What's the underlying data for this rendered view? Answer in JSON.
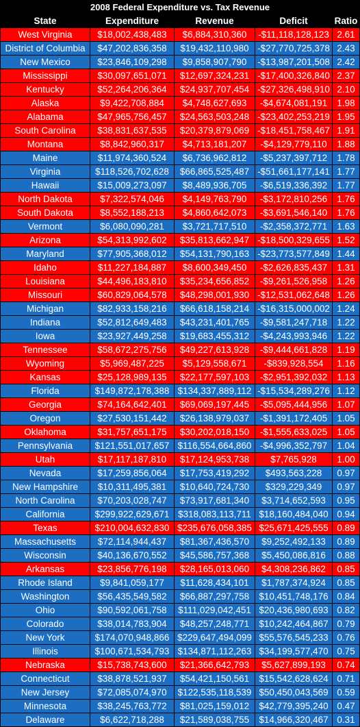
{
  "title": "2008 Federal Expenditure vs. Tax Revenue",
  "headers": [
    "State",
    "Expenditure",
    "Revenue",
    "Deficit",
    "Ratio"
  ],
  "colors": {
    "red_row": "#fe0000",
    "blue_row": "#1b6ec2",
    "header": "#000000"
  },
  "rows": [
    {
      "state": "West Virginia",
      "expenditure": "$18,002,438,483",
      "revenue": "$6,884,310,360",
      "deficit": "-$11,118,128,123",
      "ratio": "2.61",
      "color": "red"
    },
    {
      "state": "District of Columbia",
      "expenditure": "$47,202,836,358",
      "revenue": "$19,432,110,980",
      "deficit": "-$27,770,725,378",
      "ratio": "2.43",
      "color": "blue"
    },
    {
      "state": "New Mexico",
      "expenditure": "$23,846,109,298",
      "revenue": "$9,858,907,790",
      "deficit": "-$13,987,201,508",
      "ratio": "2.42",
      "color": "blue"
    },
    {
      "state": "Mississippi",
      "expenditure": "$30,097,651,071",
      "revenue": "$12,697,324,231",
      "deficit": "-$17,400,326,840",
      "ratio": "2.37",
      "color": "red"
    },
    {
      "state": "Kentucky",
      "expenditure": "$52,264,206,364",
      "revenue": "$24,937,707,454",
      "deficit": "-$27,326,498,910",
      "ratio": "2.10",
      "color": "red"
    },
    {
      "state": "Alaska",
      "expenditure": "$9,422,708,884",
      "revenue": "$4,748,627,693",
      "deficit": "-$4,674,081,191",
      "ratio": "1.98",
      "color": "red"
    },
    {
      "state": "Alabama",
      "expenditure": "$47,965,756,457",
      "revenue": "$24,563,503,248",
      "deficit": "-$23,402,253,219",
      "ratio": "1.95",
      "color": "red"
    },
    {
      "state": "South Carolina",
      "expenditure": "$38,831,637,535",
      "revenue": "$20,379,879,069",
      "deficit": "-$18,451,758,467",
      "ratio": "1.91",
      "color": "red"
    },
    {
      "state": "Montana",
      "expenditure": "$8,842,960,317",
      "revenue": "$4,713,181,207",
      "deficit": "-$4,129,779,110",
      "ratio": "1.88",
      "color": "red"
    },
    {
      "state": "Maine",
      "expenditure": "$11,974,360,524",
      "revenue": "$6,736,962,812",
      "deficit": "-$5,237,397,712",
      "ratio": "1.78",
      "color": "blue"
    },
    {
      "state": "Virginia",
      "expenditure": "$118,526,702,628",
      "revenue": "$66,865,525,487",
      "deficit": "-$51,661,177,141",
      "ratio": "1.77",
      "color": "blue"
    },
    {
      "state": "Hawaii",
      "expenditure": "$15,009,273,097",
      "revenue": "$8,489,936,705",
      "deficit": "-$6,519,336,392",
      "ratio": "1.77",
      "color": "blue"
    },
    {
      "state": "North Dakota",
      "expenditure": "$7,322,574,046",
      "revenue": "$4,149,763,790",
      "deficit": "-$3,172,810,256",
      "ratio": "1.76",
      "color": "red"
    },
    {
      "state": "South Dakota",
      "expenditure": "$8,552,188,213",
      "revenue": "$4,860,642,073",
      "deficit": "-$3,691,546,140",
      "ratio": "1.76",
      "color": "red"
    },
    {
      "state": "Vermont",
      "expenditure": "$6,080,090,281",
      "revenue": "$3,721,717,510",
      "deficit": "-$2,358,372,771",
      "ratio": "1.63",
      "color": "blue"
    },
    {
      "state": "Arizona",
      "expenditure": "$54,313,992,602",
      "revenue": "$35,813,662,947",
      "deficit": "-$18,500,329,655",
      "ratio": "1.52",
      "color": "red"
    },
    {
      "state": "Maryland",
      "expenditure": "$77,905,368,012",
      "revenue": "$54,131,790,163",
      "deficit": "-$23,773,577,849",
      "ratio": "1.44",
      "color": "blue"
    },
    {
      "state": "Idaho",
      "expenditure": "$11,227,184,887",
      "revenue": "$8,600,349,450",
      "deficit": "-$2,626,835,437",
      "ratio": "1.31",
      "color": "red"
    },
    {
      "state": "Louisiana",
      "expenditure": "$44,496,183,810",
      "revenue": "$35,234,656,852",
      "deficit": "-$9,261,526,958",
      "ratio": "1.26",
      "color": "red"
    },
    {
      "state": "Missouri",
      "expenditure": "$60,829,064,578",
      "revenue": "$48,298,001,930",
      "deficit": "-$12,531,062,648",
      "ratio": "1.26",
      "color": "red"
    },
    {
      "state": "Michigan",
      "expenditure": "$82,933,158,216",
      "revenue": "$66,618,158,214",
      "deficit": "-$16,315,000,002",
      "ratio": "1.24",
      "color": "blue"
    },
    {
      "state": "Indiana",
      "expenditure": "$52,812,649,483",
      "revenue": "$43,231,401,765",
      "deficit": "-$9,581,247,718",
      "ratio": "1.22",
      "color": "blue"
    },
    {
      "state": "Iowa",
      "expenditure": "$23,927,449,258",
      "revenue": "$19,683,455,312",
      "deficit": "-$4,243,993,946",
      "ratio": "1.22",
      "color": "blue"
    },
    {
      "state": "Tennessee",
      "expenditure": "$58,672,275,756",
      "revenue": "$49,227,613,928",
      "deficit": "-$9,444,661,828",
      "ratio": "1.19",
      "color": "red"
    },
    {
      "state": "Wyoming",
      "expenditure": "$5,969,487,225",
      "revenue": "$5,129,558,671",
      "deficit": "-$839,928,554",
      "ratio": "1.16",
      "color": "red"
    },
    {
      "state": "Kansas",
      "expenditure": "$25,128,989,135",
      "revenue": "$22,177,597,103",
      "deficit": "-$2,951,392,032",
      "ratio": "1.13",
      "color": "red"
    },
    {
      "state": "Florida",
      "expenditure": "$149,872,178,388",
      "revenue": "$134,337,889,112",
      "deficit": "-$15,534,289,276",
      "ratio": "1.12",
      "color": "blue"
    },
    {
      "state": "Georgia",
      "expenditure": "$74,164,642,401",
      "revenue": "$69,069,197,445",
      "deficit": "-$5,095,444,956",
      "ratio": "1.07",
      "color": "red"
    },
    {
      "state": "Oregon",
      "expenditure": "$27,530,151,442",
      "revenue": "$26,138,979,037",
      "deficit": "-$1,391,172,405",
      "ratio": "1.05",
      "color": "blue"
    },
    {
      "state": "Oklahoma",
      "expenditure": "$31,757,651,175",
      "revenue": "$30,202,018,150",
      "deficit": "-$1,555,633,025",
      "ratio": "1.05",
      "color": "red"
    },
    {
      "state": "Pennsylvania",
      "expenditure": "$121,551,017,657",
      "revenue": "$116,554,664,860",
      "deficit": "-$4,996,352,797",
      "ratio": "1.04",
      "color": "blue"
    },
    {
      "state": "Utah",
      "expenditure": "$17,117,187,810",
      "revenue": "$17,124,953,738",
      "deficit": "$7,765,928",
      "ratio": "1.00",
      "color": "red"
    },
    {
      "state": "Nevada",
      "expenditure": "$17,259,856,064",
      "revenue": "$17,753,419,292",
      "deficit": "$493,563,228",
      "ratio": "0.97",
      "color": "blue"
    },
    {
      "state": "New Hampshire",
      "expenditure": "$10,311,495,381",
      "revenue": "$10,640,724,730",
      "deficit": "$329,229,349",
      "ratio": "0.97",
      "color": "blue"
    },
    {
      "state": "North Carolina",
      "expenditure": "$70,203,028,747",
      "revenue": "$73,917,681,340",
      "deficit": "$3,714,652,593",
      "ratio": "0.95",
      "color": "blue"
    },
    {
      "state": "California",
      "expenditure": "$299,922,629,671",
      "revenue": "$318,083,113,711",
      "deficit": "$18,160,484,040",
      "ratio": "0.94",
      "color": "blue"
    },
    {
      "state": "Texas",
      "expenditure": "$210,004,632,830",
      "revenue": "$235,676,058,385",
      "deficit": "$25,671,425,555",
      "ratio": "0.89",
      "color": "red"
    },
    {
      "state": "Massachusetts",
      "expenditure": "$72,114,944,437",
      "revenue": "$81,367,436,570",
      "deficit": "$9,252,492,133",
      "ratio": "0.89",
      "color": "blue"
    },
    {
      "state": "Wisconsin",
      "expenditure": "$40,136,670,552",
      "revenue": "$45,586,757,368",
      "deficit": "$5,450,086,816",
      "ratio": "0.88",
      "color": "blue"
    },
    {
      "state": "Arkansas",
      "expenditure": "$23,856,776,198",
      "revenue": "$28,165,013,060",
      "deficit": "$4,308,236,862",
      "ratio": "0.85",
      "color": "red"
    },
    {
      "state": "Rhode Island",
      "expenditure": "$9,841,059,177",
      "revenue": "$11,628,434,101",
      "deficit": "$1,787,374,924",
      "ratio": "0.85",
      "color": "blue"
    },
    {
      "state": "Washington",
      "expenditure": "$56,435,549,582",
      "revenue": "$66,887,297,758",
      "deficit": "$10,451,748,176",
      "ratio": "0.84",
      "color": "blue"
    },
    {
      "state": "Ohio",
      "expenditure": "$90,592,061,758",
      "revenue": "$111,029,042,451",
      "deficit": "$20,436,980,693",
      "ratio": "0.82",
      "color": "blue"
    },
    {
      "state": "Colorado",
      "expenditure": "$38,014,783,904",
      "revenue": "$48,257,248,771",
      "deficit": "$10,242,464,867",
      "ratio": "0.79",
      "color": "blue"
    },
    {
      "state": "New York",
      "expenditure": "$174,070,948,866",
      "revenue": "$229,647,494,099",
      "deficit": "$55,576,545,233",
      "ratio": "0.76",
      "color": "blue"
    },
    {
      "state": "Illinois",
      "expenditure": "$100,671,534,793",
      "revenue": "$134,871,112,263",
      "deficit": "$34,199,577,470",
      "ratio": "0.75",
      "color": "blue"
    },
    {
      "state": "Nebraska",
      "expenditure": "$15,738,743,600",
      "revenue": "$21,366,642,793",
      "deficit": "$5,627,899,193",
      "ratio": "0.74",
      "color": "red"
    },
    {
      "state": "Connecticut",
      "expenditure": "$38,878,521,937",
      "revenue": "$54,421,150,561",
      "deficit": "$15,542,628,624",
      "ratio": "0.71",
      "color": "blue"
    },
    {
      "state": "New Jersey",
      "expenditure": "$72,085,074,970",
      "revenue": "$122,535,118,539",
      "deficit": "$50,450,043,569",
      "ratio": "0.59",
      "color": "blue"
    },
    {
      "state": "Minnesota",
      "expenditure": "$38,245,763,772",
      "revenue": "$81,025,159,012",
      "deficit": "$42,779,395,240",
      "ratio": "0.47",
      "color": "blue"
    },
    {
      "state": "Delaware",
      "expenditure": "$6,622,718,288",
      "revenue": "$21,589,038,755",
      "deficit": "$14,966,320,467",
      "ratio": "0.31",
      "color": "blue"
    }
  ]
}
